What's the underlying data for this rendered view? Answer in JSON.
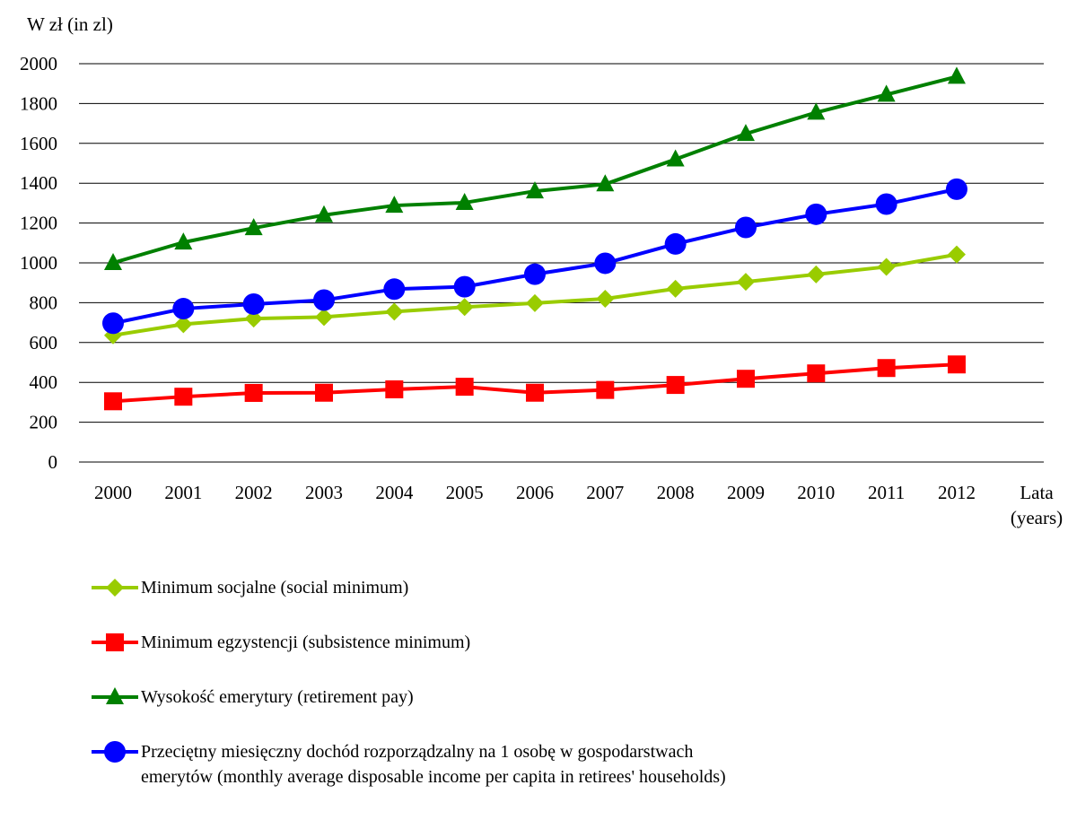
{
  "chart_data": {
    "type": "line",
    "ylabel": "W zł (in zl)",
    "xlabel_lines": [
      "Lata",
      "(years)"
    ],
    "categories": [
      "2000",
      "2001",
      "2002",
      "2003",
      "2004",
      "2005",
      "2006",
      "2007",
      "2008",
      "2009",
      "2010",
      "2011",
      "2012"
    ],
    "ylim": [
      0,
      2000
    ],
    "yticks": [
      "0",
      "200",
      "400",
      "600",
      "800",
      "1000",
      "1200",
      "1400",
      "1600",
      "1800",
      "2000"
    ],
    "grid": true,
    "legend_position": "bottom",
    "series": [
      {
        "name": "Minimum socjalne (social minimum)",
        "color": "#99cc00",
        "marker": "diamond",
        "values": [
          636,
          692,
          720,
          728,
          755,
          778,
          798,
          820,
          870,
          905,
          942,
          980,
          1042
        ]
      },
      {
        "name": "Minimum egzystencji (subsistence minimum)",
        "color": "#ff0000",
        "marker": "square",
        "values": [
          305,
          328,
          347,
          348,
          365,
          378,
          348,
          362,
          387,
          418,
          445,
          472,
          490
        ]
      },
      {
        "name": "Wysokość emerytury (retirement pay)",
        "color": "#008000",
        "marker": "triangle",
        "values": [
          1000,
          1103,
          1175,
          1240,
          1288,
          1302,
          1360,
          1395,
          1520,
          1648,
          1755,
          1845,
          1935
        ]
      },
      {
        "name": "Przeciętny miesięczny dochód rozporządzalny na 1 osobę w gospodarstwach emerytów (monthly average disposable income per capita in retirees' households)",
        "color": "#0000ff",
        "marker": "circle",
        "values": [
          697,
          770,
          793,
          813,
          868,
          880,
          943,
          998,
          1095,
          1178,
          1244,
          1295,
          1370
        ]
      }
    ]
  }
}
